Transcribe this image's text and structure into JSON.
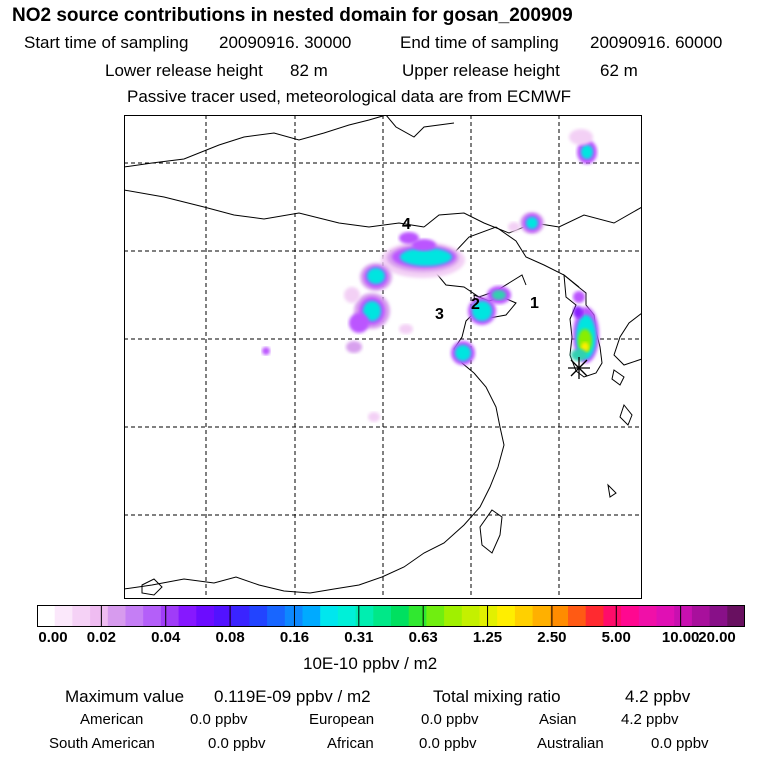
{
  "title": "NO2 source contributions in nested domain for gosan_200909",
  "sampling": {
    "start_label": "Start time of sampling",
    "start_value": "20090916. 30000",
    "end_label": "End time of sampling",
    "end_value": "20090916. 60000"
  },
  "release": {
    "lower_label": "Lower release height",
    "lower_value": "82 m",
    "upper_label": "Upper release height",
    "upper_value": "62 m"
  },
  "note": "Passive tracer used, meteorological data are from ECMWF",
  "map": {
    "labels": [
      "4",
      "2",
      "3",
      "1"
    ],
    "marker_icon": "asterisk-receptor-icon",
    "plume_colors": {
      "pale": "#f3d0f5",
      "light_purple": "#d8a0ee",
      "magenta": "#bb55ff",
      "violet": "#8822ff",
      "cyan": "#00e5e0",
      "teal": "#30d0b0",
      "green": "#88ee00",
      "yellow": "#ffee00"
    }
  },
  "colorbar": {
    "tick_labels": [
      "0.00",
      "0.02",
      "0.04",
      "0.08",
      "0.16",
      "0.31",
      "0.63",
      "1.25",
      "2.50",
      "5.00",
      "10.00",
      "20.00"
    ],
    "colors": [
      "#ffffff",
      "#fbe8fb",
      "#f5d2f6",
      "#efbcf1",
      "#d79bee",
      "#c57ef5",
      "#b45ff9",
      "#a03cf8",
      "#8618ff",
      "#6c0cff",
      "#5212ff",
      "#3a24ff",
      "#2244ff",
      "#1866ff",
      "#0d88ff",
      "#00aaff",
      "#00e6ee",
      "#00f0d8",
      "#00eeb0",
      "#00e888",
      "#00e060",
      "#30e830",
      "#70ee10",
      "#a0f000",
      "#c4f000",
      "#e2f000",
      "#ffee00",
      "#ffd000",
      "#ffb000",
      "#ff8c00",
      "#ff5a14",
      "#ff2a30",
      "#ff0c6a",
      "#ff0890",
      "#f010a8",
      "#e010b4",
      "#c810b0",
      "#a8109c",
      "#881088",
      "#681060"
    ],
    "unit": "10E-10 ppbv / m2"
  },
  "stats": {
    "max_label": "Maximum value",
    "max_value": "0.119E-09 ppbv / m2",
    "total_label": "Total mixing ratio",
    "total_value": "4.2 ppbv",
    "regions": [
      {
        "name": "American",
        "value": "0.0 ppbv"
      },
      {
        "name": "European",
        "value": "0.0 ppbv"
      },
      {
        "name": "Asian",
        "value": "4.2 ppbv"
      },
      {
        "name": "South American",
        "value": "0.0 ppbv"
      },
      {
        "name": "African",
        "value": "0.0 ppbv"
      },
      {
        "name": "Australian",
        "value": "0.0 ppbv"
      }
    ]
  }
}
